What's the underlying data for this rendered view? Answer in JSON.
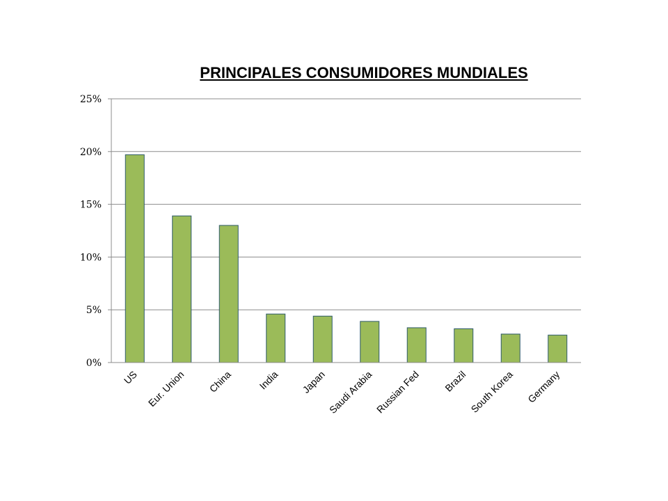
{
  "chart_data": {
    "type": "bar",
    "title": "PRINCIPALES CONSUMIDORES MUNDIALES",
    "xlabel": "",
    "ylabel": "",
    "categories": [
      "US",
      "Eur. Union",
      "China",
      "India",
      "Japan",
      "Saudi Arabia",
      "Russian Fed",
      "Brazil",
      "South Korea",
      "Germany"
    ],
    "values": [
      0.197,
      0.139,
      0.13,
      0.046,
      0.044,
      0.039,
      0.033,
      0.032,
      0.027,
      0.026
    ],
    "ylim": [
      0,
      0.25
    ],
    "yticks": [
      0,
      0.05,
      0.1,
      0.15,
      0.2,
      0.25
    ],
    "ytick_labels": [
      "0%",
      "5%",
      "10%",
      "15%",
      "20%",
      "25%"
    ],
    "grid": true,
    "legend": "none",
    "colors": {
      "bar_fill": "#9bbb59",
      "bar_stroke": "#2e5a6b",
      "grid": "#8c8c8c"
    }
  }
}
